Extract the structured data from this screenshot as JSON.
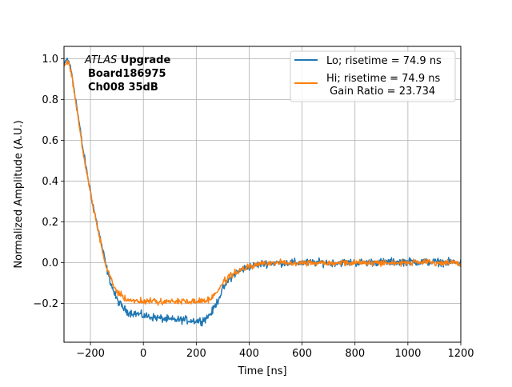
{
  "chart_data": {
    "type": "line",
    "xlabel": "Time [ns]",
    "ylabel": "Normalized Amplitude (A.U.)",
    "xlim": [
      -300,
      1200
    ],
    "ylim": [
      -0.39,
      1.06
    ],
    "xticks": [
      -200,
      0,
      200,
      400,
      600,
      800,
      1000,
      1200
    ],
    "yticks": [
      -0.2,
      0.0,
      0.2,
      0.4,
      0.6,
      0.8,
      1.0
    ],
    "xtick_labels": [
      "−200",
      "0",
      "200",
      "400",
      "600",
      "800",
      "1000",
      "1200"
    ],
    "ytick_labels": [
      "−0.2",
      "0.0",
      "0.2",
      "0.4",
      "0.6",
      "0.8",
      "1.0"
    ],
    "grid": true,
    "legend_position": "top-right",
    "annotation": {
      "line1_italic": "ATLAS",
      "line1_bold": " Upgrade",
      "line2": "Board186975",
      "line3": "Ch008 35dB"
    },
    "series": [
      {
        "name": "Lo; risetime = 74.9 ns",
        "color": "#1f77b4",
        "noise": 0.014,
        "points": [
          [
            -300,
            0.96
          ],
          [
            -290,
            1.0
          ],
          [
            -280,
            0.98
          ],
          [
            -270,
            0.92
          ],
          [
            -260,
            0.84
          ],
          [
            -250,
            0.75
          ],
          [
            -240,
            0.66
          ],
          [
            -230,
            0.57
          ],
          [
            -220,
            0.49
          ],
          [
            -210,
            0.42
          ],
          [
            -200,
            0.35
          ],
          [
            -190,
            0.28
          ],
          [
            -180,
            0.22
          ],
          [
            -170,
            0.16
          ],
          [
            -160,
            0.1
          ],
          [
            -150,
            0.04
          ],
          [
            -140,
            -0.02
          ],
          [
            -130,
            -0.07
          ],
          [
            -120,
            -0.11
          ],
          [
            -110,
            -0.15
          ],
          [
            -100,
            -0.18
          ],
          [
            -90,
            -0.2
          ],
          [
            -80,
            -0.215
          ],
          [
            -70,
            -0.23
          ],
          [
            -60,
            -0.24
          ],
          [
            -50,
            -0.245
          ],
          [
            -25,
            -0.25
          ],
          [
            0,
            -0.26
          ],
          [
            50,
            -0.27
          ],
          [
            100,
            -0.28
          ],
          [
            150,
            -0.28
          ],
          [
            200,
            -0.285
          ],
          [
            220,
            -0.285
          ],
          [
            240,
            -0.27
          ],
          [
            260,
            -0.24
          ],
          [
            280,
            -0.19
          ],
          [
            300,
            -0.13
          ],
          [
            320,
            -0.09
          ],
          [
            340,
            -0.06
          ],
          [
            360,
            -0.045
          ],
          [
            380,
            -0.03
          ],
          [
            400,
            -0.02
          ],
          [
            450,
            -0.005
          ],
          [
            500,
            0.0
          ],
          [
            600,
            0.0
          ],
          [
            800,
            0.0
          ],
          [
            1000,
            0.005
          ],
          [
            1200,
            0.0
          ]
        ]
      },
      {
        "name": "Hi; risetime = 74.9 ns\n Gain Ratio = 23.734",
        "color": "#ff7f0e",
        "noise": 0.011,
        "points": [
          [
            -300,
            0.96
          ],
          [
            -290,
            0.99
          ],
          [
            -280,
            0.97
          ],
          [
            -270,
            0.91
          ],
          [
            -260,
            0.83
          ],
          [
            -250,
            0.74
          ],
          [
            -240,
            0.65
          ],
          [
            -230,
            0.56
          ],
          [
            -220,
            0.48
          ],
          [
            -210,
            0.41
          ],
          [
            -200,
            0.34
          ],
          [
            -190,
            0.27
          ],
          [
            -180,
            0.21
          ],
          [
            -170,
            0.15
          ],
          [
            -160,
            0.09
          ],
          [
            -150,
            0.03
          ],
          [
            -140,
            -0.02
          ],
          [
            -130,
            -0.06
          ],
          [
            -120,
            -0.09
          ],
          [
            -110,
            -0.12
          ],
          [
            -100,
            -0.14
          ],
          [
            -90,
            -0.155
          ],
          [
            -80,
            -0.165
          ],
          [
            -70,
            -0.175
          ],
          [
            -60,
            -0.18
          ],
          [
            -40,
            -0.185
          ],
          [
            0,
            -0.19
          ],
          [
            100,
            -0.19
          ],
          [
            200,
            -0.19
          ],
          [
            240,
            -0.185
          ],
          [
            260,
            -0.17
          ],
          [
            280,
            -0.14
          ],
          [
            300,
            -0.1
          ],
          [
            320,
            -0.075
          ],
          [
            340,
            -0.055
          ],
          [
            360,
            -0.04
          ],
          [
            380,
            -0.03
          ],
          [
            400,
            -0.02
          ],
          [
            450,
            -0.005
          ],
          [
            500,
            0.0
          ],
          [
            700,
            0.0
          ],
          [
            900,
            0.0
          ],
          [
            1200,
            0.0
          ]
        ]
      }
    ]
  }
}
